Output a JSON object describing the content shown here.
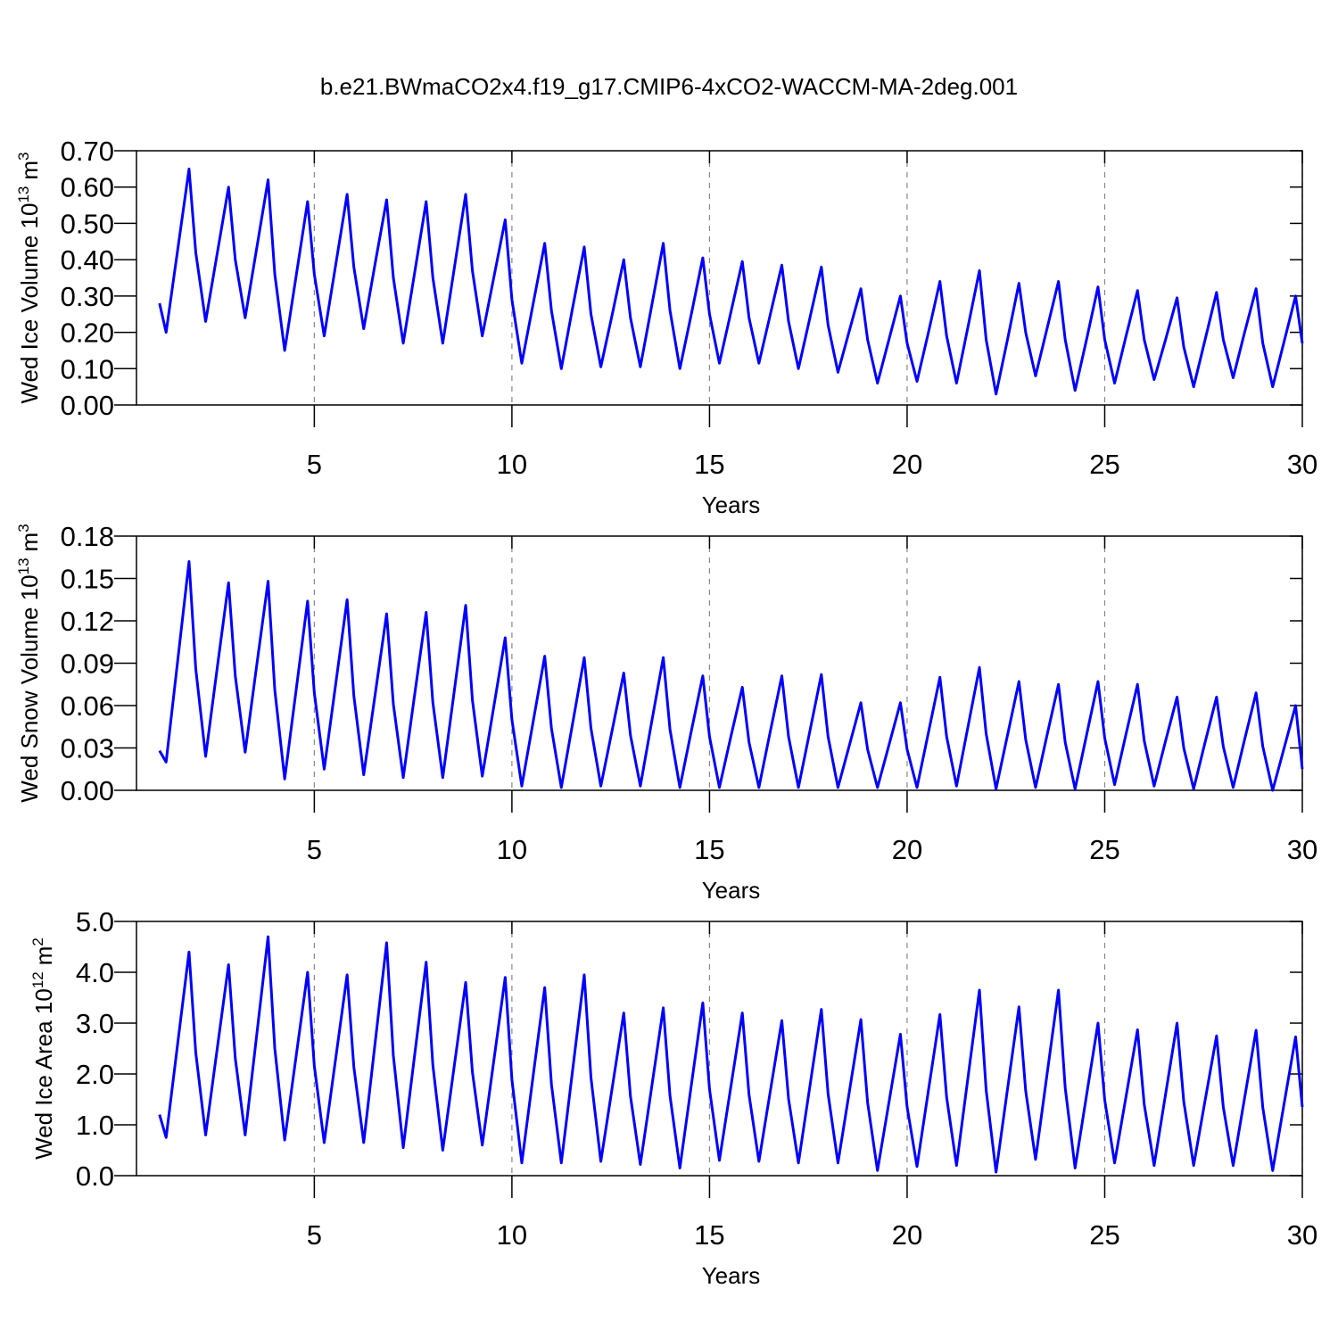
{
  "chart_data": [
    {
      "type": "line",
      "title": "b.e21.BWmaCO2x4.f19_g17.CMIP6-4xCO2-WACCM-MA-2deg.001",
      "ylabel": {
        "text": "Wed Ice Volume 10",
        "exponent": "13",
        "unit": "m",
        "unit_exponent": "3"
      },
      "xlabel": "Years",
      "xlim": [
        0.5,
        30
      ],
      "xticks": [
        5,
        10,
        15,
        20,
        25,
        30
      ],
      "xgrid": true,
      "ylim": [
        0,
        0.7
      ],
      "yticks": [
        {
          "value": 0,
          "label": "0.00"
        },
        {
          "value": 0.1,
          "label": "0.10"
        },
        {
          "value": 0.2,
          "label": "0.20"
        },
        {
          "value": 0.3,
          "label": "0.30"
        },
        {
          "value": 0.4,
          "label": "0.40"
        },
        {
          "value": 0.5,
          "label": "0.50"
        },
        {
          "value": 0.6,
          "label": "0.60"
        },
        {
          "value": 0.7,
          "label": "0.70"
        }
      ],
      "x": [
        1.083,
        1.25,
        1.54,
        1.83,
        2,
        2.25,
        2.54,
        2.83,
        3,
        3.25,
        3.54,
        3.83,
        4,
        4.25,
        4.54,
        4.83,
        5,
        5.25,
        5.54,
        5.83,
        6,
        6.25,
        6.54,
        6.83,
        7,
        7.25,
        7.54,
        7.83,
        8,
        8.25,
        8.54,
        8.83,
        9,
        9.25,
        9.54,
        9.83,
        10,
        10.25,
        10.54,
        10.83,
        11,
        11.25,
        11.54,
        11.83,
        12,
        12.25,
        12.54,
        12.83,
        13,
        13.25,
        13.54,
        13.83,
        14,
        14.25,
        14.54,
        14.83,
        15,
        15.25,
        15.54,
        15.83,
        16,
        16.25,
        16.54,
        16.83,
        17,
        17.25,
        17.54,
        17.83,
        18,
        18.25,
        18.54,
        18.83,
        19,
        19.25,
        19.54,
        19.83,
        20,
        20.25,
        20.54,
        20.83,
        21,
        21.25,
        21.54,
        21.83,
        22,
        22.25,
        22.54,
        22.83,
        23,
        23.25,
        23.54,
        23.83,
        24,
        24.25,
        24.54,
        24.83,
        25,
        25.25,
        25.54,
        25.83,
        26,
        26.25,
        26.54,
        26.83,
        27,
        27.25,
        27.54,
        27.83,
        28,
        28.25,
        28.54,
        28.83,
        29,
        29.25,
        29.54,
        29.83,
        30
      ],
      "series": [
        {
          "color": "#0000ff",
          "values": [
            0.28,
            0.2,
            0.425,
            0.65,
            0.42,
            0.23,
            0.415,
            0.6,
            0.4,
            0.24,
            0.43,
            0.62,
            0.36,
            0.15,
            0.355,
            0.56,
            0.36,
            0.19,
            0.385,
            0.58,
            0.38,
            0.21,
            0.39,
            0.565,
            0.35,
            0.17,
            0.365,
            0.56,
            0.35,
            0.17,
            0.375,
            0.58,
            0.37,
            0.19,
            0.35,
            0.51,
            0.29,
            0.115,
            0.28,
            0.445,
            0.26,
            0.1,
            0.27,
            0.435,
            0.25,
            0.105,
            0.25,
            0.4,
            0.24,
            0.105,
            0.275,
            0.445,
            0.26,
            0.1,
            0.25,
            0.405,
            0.25,
            0.115,
            0.255,
            0.395,
            0.24,
            0.115,
            0.25,
            0.385,
            0.23,
            0.1,
            0.24,
            0.38,
            0.22,
            0.09,
            0.205,
            0.32,
            0.18,
            0.06,
            0.18,
            0.3,
            0.17,
            0.065,
            0.2,
            0.34,
            0.19,
            0.06,
            0.215,
            0.37,
            0.18,
            0.03,
            0.18,
            0.335,
            0.2,
            0.08,
            0.21,
            0.34,
            0.18,
            0.04,
            0.18,
            0.325,
            0.18,
            0.06,
            0.19,
            0.315,
            0.18,
            0.07,
            0.18,
            0.295,
            0.16,
            0.05,
            0.18,
            0.31,
            0.18,
            0.075,
            0.2,
            0.32,
            0.17,
            0.05,
            0.175,
            0.3,
            0.17
          ]
        }
      ]
    },
    {
      "type": "line",
      "ylabel": {
        "text": "Wed Snow Volume 10",
        "exponent": "13",
        "unit": "m",
        "unit_exponent": "3"
      },
      "xlabel": "Years",
      "xlim": [
        0.5,
        30
      ],
      "xticks": [
        5,
        10,
        15,
        20,
        25,
        30
      ],
      "xgrid": true,
      "ylim": [
        0,
        0.18
      ],
      "yticks": [
        {
          "value": 0,
          "label": "0.00"
        },
        {
          "value": 0.03,
          "label": "0.03"
        },
        {
          "value": 0.06,
          "label": "0.06"
        },
        {
          "value": 0.09,
          "label": "0.09"
        },
        {
          "value": 0.12,
          "label": "0.12"
        },
        {
          "value": 0.15,
          "label": "0.15"
        },
        {
          "value": 0.18,
          "label": "0.18"
        }
      ],
      "x": [
        1.083,
        1.25,
        1.54,
        1.83,
        2,
        2.25,
        2.54,
        2.83,
        3,
        3.25,
        3.54,
        3.83,
        4,
        4.25,
        4.54,
        4.83,
        5,
        5.25,
        5.54,
        5.83,
        6,
        6.25,
        6.54,
        6.83,
        7,
        7.25,
        7.54,
        7.83,
        8,
        8.25,
        8.54,
        8.83,
        9,
        9.25,
        9.54,
        9.83,
        10,
        10.25,
        10.54,
        10.83,
        11,
        11.25,
        11.54,
        11.83,
        12,
        12.25,
        12.54,
        12.83,
        13,
        13.25,
        13.54,
        13.83,
        14,
        14.25,
        14.54,
        14.83,
        15,
        15.25,
        15.54,
        15.83,
        16,
        16.25,
        16.54,
        16.83,
        17,
        17.25,
        17.54,
        17.83,
        18,
        18.25,
        18.54,
        18.83,
        19,
        19.25,
        19.54,
        19.83,
        20,
        20.25,
        20.54,
        20.83,
        21,
        21.25,
        21.54,
        21.83,
        22,
        22.25,
        22.54,
        22.83,
        23,
        23.25,
        23.54,
        23.83,
        24,
        24.25,
        24.54,
        24.83,
        25,
        25.25,
        25.54,
        25.83,
        26,
        26.25,
        26.54,
        26.83,
        27,
        27.25,
        27.54,
        27.83,
        28,
        28.25,
        28.54,
        28.83,
        29,
        29.25,
        29.54,
        29.83,
        30
      ],
      "series": [
        {
          "color": "#0000ff",
          "values": [
            0.028,
            0.02,
            0.091,
            0.162,
            0.086,
            0.024,
            0.086,
            0.147,
            0.081,
            0.027,
            0.088,
            0.148,
            0.071,
            0.008,
            0.071,
            0.134,
            0.069,
            0.015,
            0.075,
            0.135,
            0.067,
            0.011,
            0.068,
            0.125,
            0.061,
            0.009,
            0.068,
            0.126,
            0.062,
            0.009,
            0.07,
            0.131,
            0.064,
            0.01,
            0.059,
            0.108,
            0.05,
            0.003,
            0.049,
            0.095,
            0.044,
            0.002,
            0.048,
            0.094,
            0.044,
            0.003,
            0.043,
            0.083,
            0.039,
            0.003,
            0.049,
            0.094,
            0.043,
            0.002,
            0.042,
            0.081,
            0.038,
            0.002,
            0.038,
            0.073,
            0.034,
            0.002,
            0.042,
            0.081,
            0.038,
            0.002,
            0.042,
            0.082,
            0.038,
            0.002,
            0.032,
            0.062,
            0.029,
            0.002,
            0.032,
            0.062,
            0.029,
            0.002,
            0.041,
            0.08,
            0.038,
            0.003,
            0.045,
            0.087,
            0.04,
            0.001,
            0.039,
            0.077,
            0.036,
            0.002,
            0.039,
            0.075,
            0.034,
            0.001,
            0.039,
            0.077,
            0.037,
            0.004,
            0.04,
            0.075,
            0.035,
            0.003,
            0.035,
            0.066,
            0.03,
            0.001,
            0.034,
            0.066,
            0.031,
            0.002,
            0.036,
            0.069,
            0.031,
            0,
            0.03,
            0.06,
            0.015
          ]
        }
      ]
    },
    {
      "type": "line",
      "ylabel": {
        "text": "Wed Ice Area 10",
        "exponent": "12",
        "unit": "m",
        "unit_exponent": "2"
      },
      "xlabel": "Years",
      "xlim": [
        0.5,
        30
      ],
      "xticks": [
        5,
        10,
        15,
        20,
        25,
        30
      ],
      "xgrid": true,
      "ylim": [
        0,
        5
      ],
      "yticks": [
        {
          "value": 0,
          "label": "0.0"
        },
        {
          "value": 1,
          "label": "1.0"
        },
        {
          "value": 2,
          "label": "2.0"
        },
        {
          "value": 3,
          "label": "3.0"
        },
        {
          "value": 4,
          "label": "4.0"
        },
        {
          "value": 5,
          "label": "5.0"
        }
      ],
      "x": [
        1.083,
        1.25,
        1.54,
        1.83,
        2,
        2.25,
        2.54,
        2.83,
        3,
        3.25,
        3.54,
        3.83,
        4,
        4.25,
        4.54,
        4.83,
        5,
        5.25,
        5.54,
        5.83,
        6,
        6.25,
        6.54,
        6.83,
        7,
        7.25,
        7.54,
        7.83,
        8,
        8.25,
        8.54,
        8.83,
        9,
        9.25,
        9.54,
        9.83,
        10,
        10.25,
        10.54,
        10.83,
        11,
        11.25,
        11.54,
        11.83,
        12,
        12.25,
        12.54,
        12.83,
        13,
        13.25,
        13.54,
        13.83,
        14,
        14.25,
        14.54,
        14.83,
        15,
        15.25,
        15.54,
        15.83,
        16,
        16.25,
        16.54,
        16.83,
        17,
        17.25,
        17.54,
        17.83,
        18,
        18.25,
        18.54,
        18.83,
        19,
        19.25,
        19.54,
        19.83,
        20,
        20.25,
        20.54,
        20.83,
        21,
        21.25,
        21.54,
        21.83,
        22,
        22.25,
        22.54,
        22.83,
        23,
        23.25,
        23.54,
        23.83,
        24,
        24.25,
        24.54,
        24.83,
        25,
        25.25,
        25.54,
        25.83,
        26,
        26.25,
        26.54,
        26.83,
        27,
        27.25,
        27.54,
        27.83,
        28,
        28.25,
        28.54,
        28.83,
        29,
        29.25,
        29.54,
        29.83,
        30
      ],
      "series": [
        {
          "color": "#0000ff",
          "values": [
            1.2,
            0.75,
            2.58,
            4.4,
            2.42,
            0.8,
            2.48,
            4.15,
            2.31,
            0.8,
            2.75,
            4.7,
            2.5,
            0.7,
            2.35,
            4,
            2.16,
            0.65,
            2.3,
            3.95,
            2.14,
            0.65,
            2.62,
            4.58,
            2.36,
            0.55,
            2.38,
            4.2,
            2.17,
            0.5,
            2.15,
            3.8,
            2.04,
            0.6,
            2.25,
            3.9,
            1.89,
            0.25,
            1.98,
            3.7,
            1.8,
            0.25,
            2.1,
            3.95,
            1.93,
            0.28,
            1.74,
            3.2,
            1.56,
            0.22,
            1.76,
            3.3,
            1.57,
            0.15,
            1.78,
            3.4,
            1.7,
            0.3,
            1.75,
            3.2,
            1.59,
            0.28,
            1.67,
            3.05,
            1.51,
            0.25,
            1.76,
            3.27,
            1.61,
            0.25,
            1.66,
            3.07,
            1.44,
            0.1,
            1.44,
            2.78,
            1.35,
            0.18,
            1.68,
            3.17,
            1.54,
            0.2,
            1.93,
            3.65,
            1.68,
            0.07,
            1.7,
            3.32,
            1.67,
            0.32,
            1.99,
            3.65,
            1.73,
            0.15,
            1.58,
            3,
            1.49,
            0.25,
            1.56,
            2.87,
            1.4,
            0.2,
            1.6,
            3,
            1.46,
            0.2,
            1.48,
            2.75,
            1.35,
            0.2,
            1.53,
            2.86,
            1.34,
            0.1,
            1.42,
            2.73,
            1.35
          ]
        }
      ]
    }
  ]
}
